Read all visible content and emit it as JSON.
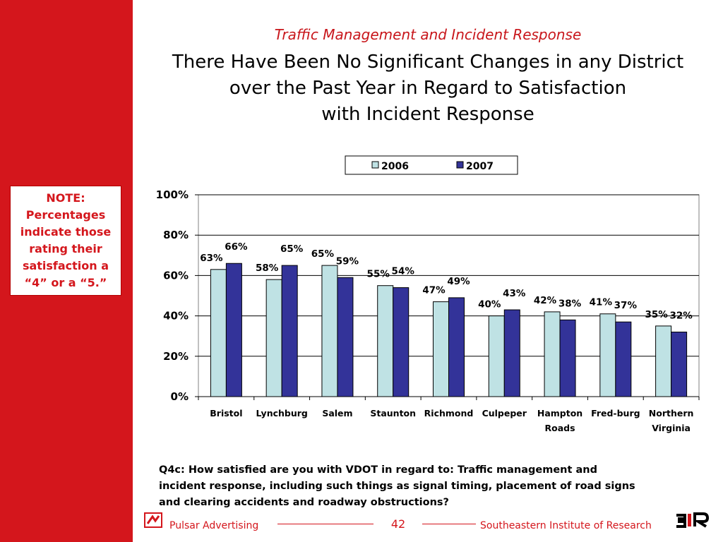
{
  "note": {
    "lines": [
      "NOTE:",
      "Percentages",
      "indicate those",
      "rating their",
      "satisfaction a",
      "“4” or a “5.”"
    ]
  },
  "header": {
    "subtitle": "Traffic Management and Incident Response",
    "title_lines": [
      "There Have Been No Significant Changes in any District",
      "over the Past Year in Regard to Satisfaction",
      "with Incident Response"
    ]
  },
  "chart_data": {
    "type": "bar",
    "categories": [
      [
        "Bristol"
      ],
      [
        "Lynchburg"
      ],
      [
        "Salem"
      ],
      [
        "Staunton"
      ],
      [
        "Richmond"
      ],
      [
        "Culpeper"
      ],
      [
        "Hampton",
        "Roads"
      ],
      [
        "Fred-burg"
      ],
      [
        "Northern",
        "Virginia"
      ]
    ],
    "series": [
      {
        "name": "2006",
        "color": "#bfe2e4",
        "values": [
          63,
          58,
          65,
          55,
          47,
          40,
          42,
          41,
          35
        ],
        "labels": [
          "63%",
          "58%",
          "65%",
          "55%",
          "47%",
          "40%",
          "42%",
          "41%",
          "35%"
        ]
      },
      {
        "name": "2007",
        "color": "#333399",
        "values": [
          66,
          65,
          59,
          54,
          49,
          43,
          38,
          37,
          32
        ],
        "labels": [
          "66%",
          "65%",
          "59%",
          "54%",
          "49%",
          "43%",
          "38%",
          "37%",
          "32%"
        ]
      }
    ],
    "ylim": [
      0,
      100
    ],
    "yticks": [
      "0%",
      "20%",
      "40%",
      "60%",
      "80%",
      "100%"
    ],
    "legend": "top-center",
    "grid": true
  },
  "question": {
    "lines": [
      "Q4c: How satisfied are you with VDOT in regard to:  Traffic management and",
      "incident response, including such things as signal timing, placement of road signs",
      "and clearing accidents and roadway obstructions?"
    ]
  },
  "footer": {
    "left": "Pulsar Advertising",
    "page": "42",
    "right": "Southeastern Institute of Research"
  }
}
